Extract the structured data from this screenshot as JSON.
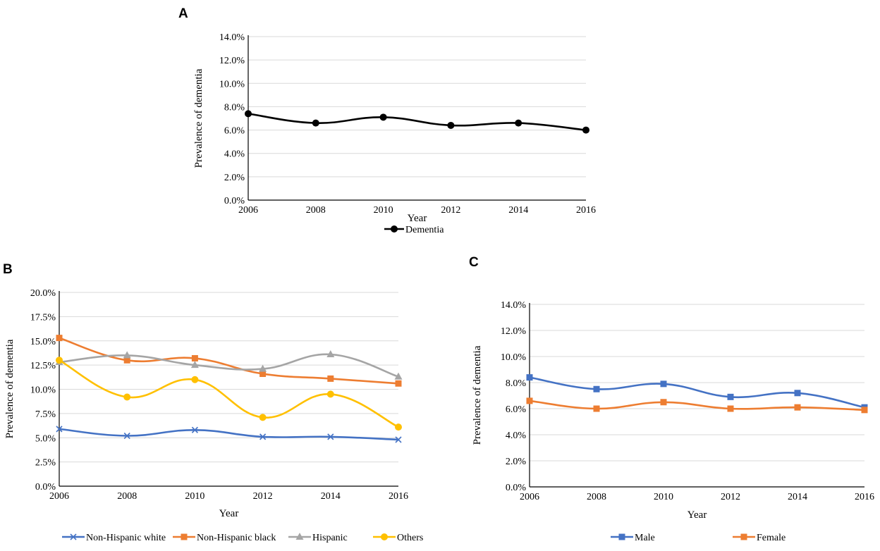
{
  "chart_data": [
    {
      "panel": "A",
      "type": "line",
      "categories": [
        "2006",
        "2008",
        "2010",
        "2012",
        "2014",
        "2016"
      ],
      "series": [
        {
          "name": "Dementia",
          "values": [
            7.4,
            6.6,
            7.1,
            6.4,
            6.6,
            6.0
          ],
          "color": "#000000",
          "marker": "circle"
        }
      ],
      "xlabel": "Year",
      "ylabel": "Prevalence of dementia",
      "ylim": [
        0,
        14
      ],
      "yticks": [
        "0.0%",
        "2.0%",
        "4.0%",
        "6.0%",
        "8.0%",
        "10.0%",
        "12.0%",
        "14.0%"
      ],
      "grid": true,
      "legend": "bottom"
    },
    {
      "panel": "B",
      "type": "line",
      "categories": [
        "2006",
        "2008",
        "2010",
        "2012",
        "2014",
        "2016"
      ],
      "series": [
        {
          "name": "Non-Hispanic white",
          "values": [
            5.9,
            5.2,
            5.8,
            5.1,
            5.1,
            4.8
          ],
          "color": "#4472c4",
          "marker": "x"
        },
        {
          "name": "Non-Hispanic black",
          "values": [
            15.3,
            13.0,
            13.2,
            11.6,
            11.1,
            10.6
          ],
          "color": "#ed7d31",
          "marker": "square"
        },
        {
          "name": "Hispanic",
          "values": [
            12.8,
            13.5,
            12.5,
            12.1,
            13.6,
            11.3
          ],
          "color": "#a5a5a5",
          "marker": "triangle"
        },
        {
          "name": "Others",
          "values": [
            13.0,
            9.2,
            11.0,
            7.1,
            9.5,
            6.1
          ],
          "color": "#ffc000",
          "marker": "circle"
        }
      ],
      "xlabel": "Year",
      "ylabel": "Prevalence of dementia",
      "ylim": [
        0,
        20
      ],
      "yticks": [
        "0.0%",
        "2.5%",
        "5.0%",
        "7.5%",
        "10.0%",
        "12.5%",
        "15.0%",
        "17.5%",
        "20.0%"
      ],
      "grid": true,
      "legend": "bottom"
    },
    {
      "panel": "C",
      "type": "line",
      "categories": [
        "2006",
        "2008",
        "2010",
        "2012",
        "2014",
        "2016"
      ],
      "series": [
        {
          "name": "Male",
          "values": [
            8.4,
            7.5,
            7.9,
            6.9,
            7.2,
            6.1
          ],
          "color": "#4472c4",
          "marker": "square"
        },
        {
          "name": "Female",
          "values": [
            6.6,
            6.0,
            6.5,
            6.0,
            6.1,
            5.9
          ],
          "color": "#ed7d31",
          "marker": "square"
        }
      ],
      "xlabel": "Year",
      "ylabel": "Prevalence of dementia",
      "ylim": [
        0,
        14
      ],
      "yticks": [
        "0.0%",
        "2.0%",
        "4.0%",
        "6.0%",
        "8.0%",
        "10.0%",
        "12.0%",
        "14.0%"
      ],
      "grid": true,
      "legend": "bottom"
    }
  ]
}
